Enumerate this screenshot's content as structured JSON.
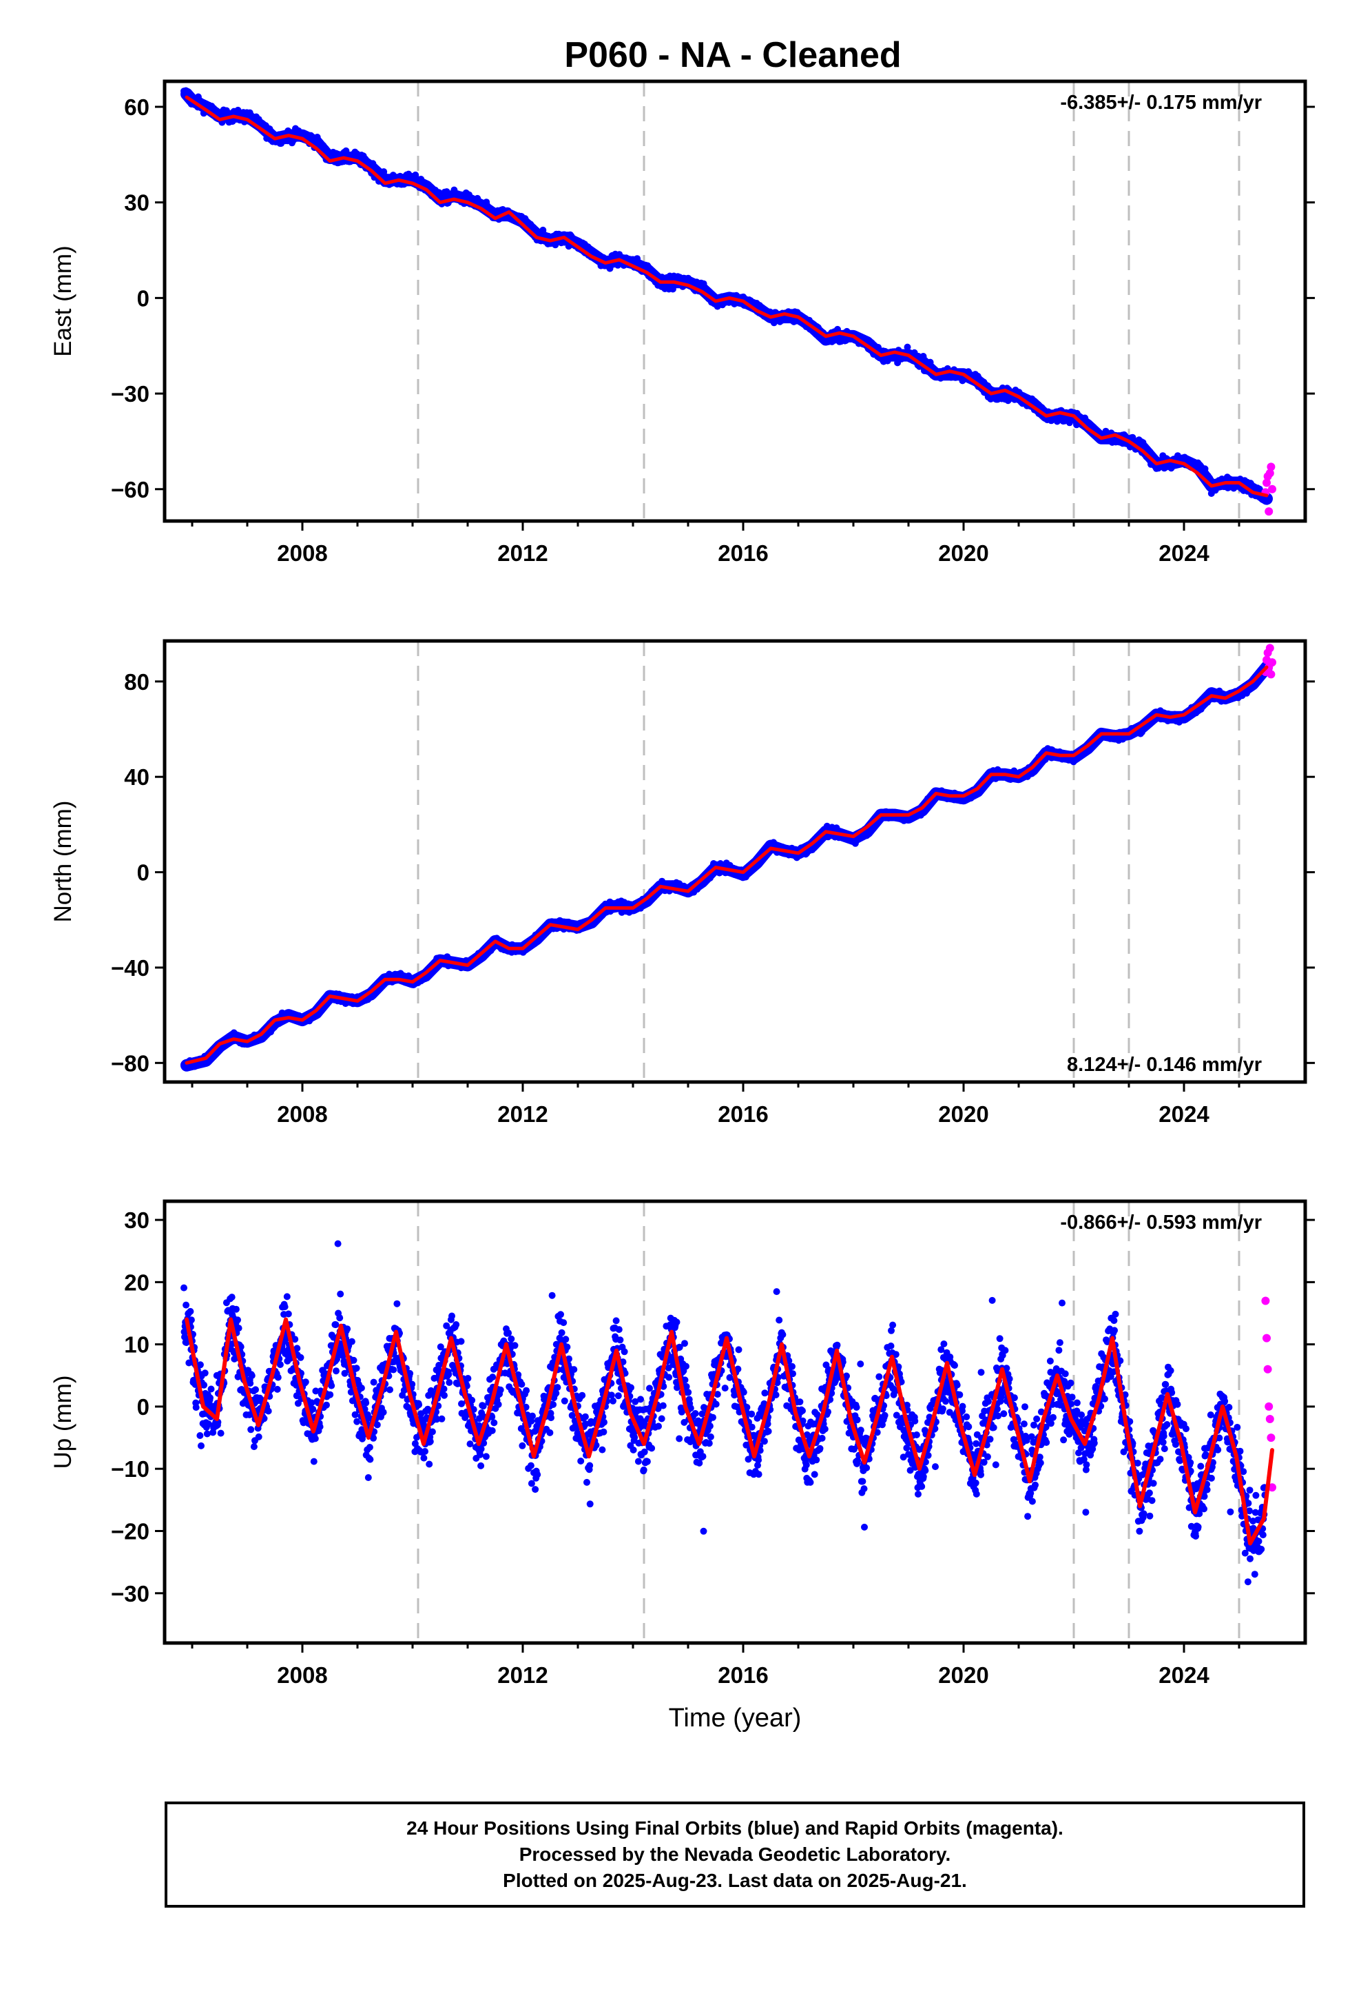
{
  "title": "P060  - NA - Cleaned",
  "xlabel": "Time (year)",
  "footer": {
    "line1": "24 Hour Positions Using Final Orbits (blue) and Rapid Orbits (magenta).",
    "line2": "Processed by the Nevada Geodetic Laboratory.",
    "line3": "Plotted on 2025-Aug-23. Last data on 2025-Aug-21."
  },
  "colors": {
    "final_orbits": "#0000ff",
    "rapid_orbits": "#ff00ff",
    "model_fit": "#ff0000",
    "event_lines": "#bfbfbf"
  },
  "chart_data": [
    {
      "type": "scatter",
      "ylabel": "East (mm)",
      "rate_label": "-6.385+/- 0.175 mm/yr",
      "rate_position": "top-right",
      "xlim": [
        2005.5,
        2026.2
      ],
      "ylim": [
        -70,
        68
      ],
      "xticks": [
        2008,
        2012,
        2016,
        2020,
        2024
      ],
      "yticks": [
        -60,
        -30,
        0,
        30,
        60
      ],
      "event_lines": [
        2010.1,
        2014.2,
        2022.0,
        2023.0,
        2025.0
      ],
      "series": [
        {
          "type": "line",
          "color": "#0000ff",
          "x": [
            2005.9,
            2006.0,
            2006.25,
            2006.5,
            2006.75,
            2007.0,
            2007.25,
            2007.5,
            2007.75,
            2008.0,
            2008.25,
            2008.5,
            2008.75,
            2009.0,
            2009.25,
            2009.5,
            2009.75,
            2010.0,
            2010.25,
            2010.5,
            2010.75,
            2011.0,
            2011.25,
            2011.5,
            2011.75,
            2012.0,
            2012.25,
            2012.5,
            2012.75,
            2013.0,
            2013.25,
            2013.5,
            2013.75,
            2014.0,
            2014.25,
            2014.5,
            2014.75,
            2015.0,
            2015.25,
            2015.5,
            2015.75,
            2016.0,
            2016.25,
            2016.5,
            2016.75,
            2017.0,
            2017.25,
            2017.5,
            2017.75,
            2018.0,
            2018.25,
            2018.5,
            2018.75,
            2019.0,
            2019.25,
            2019.5,
            2019.75,
            2020.0,
            2020.25,
            2020.5,
            2020.75,
            2021.0,
            2021.25,
            2021.5,
            2021.75,
            2022.0,
            2022.25,
            2022.5,
            2022.75,
            2023.0,
            2023.25,
            2023.5,
            2023.75,
            2024.0,
            2024.25,
            2024.5,
            2024.75,
            2025.0,
            2025.25,
            2025.5
          ],
          "y": [
            64,
            62,
            60,
            57,
            57,
            57,
            54,
            50,
            51,
            51,
            49,
            44,
            44,
            44,
            41,
            37,
            37,
            37,
            35,
            31,
            32,
            31,
            29,
            26,
            26,
            24,
            20,
            18,
            19,
            17,
            14,
            11,
            12,
            11,
            9,
            5,
            5,
            5,
            3,
            -1,
            0,
            -1,
            -3,
            -6,
            -6,
            -6,
            -9,
            -13,
            -12,
            -12,
            -14,
            -18,
            -18,
            -18,
            -20,
            -24,
            -24,
            -24,
            -26,
            -30,
            -30,
            -31,
            -33,
            -37,
            -37,
            -37,
            -40,
            -44,
            -44,
            -45,
            -47,
            -52,
            -52,
            -51,
            -53,
            -59,
            -58,
            -58,
            -60,
            -63
          ]
        },
        {
          "type": "line",
          "color": "#ff0000",
          "x": [
            2005.9,
            2006.25,
            2006.5,
            2006.75,
            2007.0,
            2007.25,
            2007.5,
            2007.75,
            2008.0,
            2008.25,
            2008.5,
            2008.75,
            2009.0,
            2009.25,
            2009.5,
            2009.75,
            2010.0,
            2010.25,
            2010.5,
            2010.75,
            2011.0,
            2011.25,
            2011.5,
            2011.75,
            2012.0,
            2012.25,
            2012.5,
            2012.75,
            2013.0,
            2013.25,
            2013.5,
            2013.75,
            2014.0,
            2014.25,
            2014.5,
            2014.75,
            2015.0,
            2015.25,
            2015.5,
            2015.75,
            2016.0,
            2016.25,
            2016.5,
            2016.75,
            2017.0,
            2017.25,
            2017.5,
            2017.75,
            2018.0,
            2018.25,
            2018.5,
            2018.75,
            2019.0,
            2019.25,
            2019.5,
            2019.75,
            2020.0,
            2020.25,
            2020.5,
            2020.75,
            2021.0,
            2021.25,
            2021.5,
            2021.75,
            2022.0,
            2022.25,
            2022.5,
            2022.75,
            2023.0,
            2023.25,
            2023.5,
            2023.75,
            2024.0,
            2024.25,
            2024.5,
            2024.75,
            2025.0,
            2025.25,
            2025.5
          ],
          "y": [
            63,
            59,
            56,
            57,
            56,
            53,
            50,
            51,
            50,
            47,
            43,
            44,
            43,
            40,
            36,
            37,
            36,
            34,
            30,
            31,
            30,
            28,
            25,
            27,
            23,
            19,
            18,
            19,
            16,
            13,
            11,
            12,
            10,
            8,
            5,
            5,
            4,
            2,
            -1,
            0,
            -1,
            -4,
            -6,
            -5,
            -6,
            -9,
            -12,
            -11,
            -12,
            -15,
            -18,
            -17,
            -18,
            -21,
            -24,
            -23,
            -24,
            -27,
            -30,
            -29,
            -31,
            -34,
            -37,
            -36,
            -37,
            -41,
            -44,
            -43,
            -45,
            -48,
            -52,
            -51,
            -52,
            -55,
            -59,
            -58,
            -58,
            -61,
            -62
          ]
        },
        {
          "type": "scatter",
          "color": "#ff00ff",
          "x": [
            2025.48,
            2025.5,
            2025.52,
            2025.54,
            2025.56,
            2025.58,
            2025.6
          ],
          "y": [
            -61,
            -58,
            -56,
            -67,
            -55,
            -53,
            -60
          ]
        }
      ]
    },
    {
      "type": "scatter",
      "ylabel": "North (mm)",
      "rate_label": "8.124+/- 0.146 mm/yr",
      "rate_position": "bottom-right",
      "xlim": [
        2005.5,
        2026.2
      ],
      "ylim": [
        -88,
        97
      ],
      "xticks": [
        2008,
        2012,
        2016,
        2020,
        2024
      ],
      "yticks": [
        -80,
        -40,
        0,
        40,
        80
      ],
      "event_lines": [
        2010.1,
        2014.2,
        2022.0,
        2023.0,
        2025.0
      ],
      "series": [
        {
          "type": "line",
          "color": "#0000ff",
          "x": [
            2005.9,
            2006.25,
            2006.5,
            2006.75,
            2007.0,
            2007.25,
            2007.5,
            2007.75,
            2008.0,
            2008.25,
            2008.5,
            2008.75,
            2009.0,
            2009.25,
            2009.5,
            2009.75,
            2010.0,
            2010.25,
            2010.5,
            2010.75,
            2011.0,
            2011.25,
            2011.5,
            2011.75,
            2012.0,
            2012.25,
            2012.5,
            2012.75,
            2013.0,
            2013.25,
            2013.5,
            2013.75,
            2014.0,
            2014.25,
            2014.5,
            2014.75,
            2015.0,
            2015.25,
            2015.5,
            2015.75,
            2016.0,
            2016.25,
            2016.5,
            2016.75,
            2017.0,
            2017.25,
            2017.5,
            2017.75,
            2018.0,
            2018.25,
            2018.5,
            2018.75,
            2019.0,
            2019.25,
            2019.5,
            2019.75,
            2020.0,
            2020.25,
            2020.5,
            2020.75,
            2021.0,
            2021.25,
            2021.5,
            2021.75,
            2022.0,
            2022.25,
            2022.5,
            2022.75,
            2023.0,
            2023.25,
            2023.5,
            2023.75,
            2024.0,
            2024.25,
            2024.5,
            2024.75,
            2025.0,
            2025.25,
            2025.5
          ],
          "y": [
            -81,
            -79,
            -73,
            -69,
            -71,
            -69,
            -63,
            -60,
            -62,
            -59,
            -52,
            -53,
            -54,
            -51,
            -45,
            -44,
            -46,
            -43,
            -37,
            -38,
            -39,
            -35,
            -29,
            -32,
            -32,
            -28,
            -22,
            -22,
            -23,
            -21,
            -15,
            -14,
            -15,
            -12,
            -6,
            -6,
            -8,
            -4,
            2,
            1,
            -1,
            4,
            11,
            9,
            8,
            11,
            17,
            16,
            14,
            17,
            24,
            24,
            23,
            26,
            33,
            32,
            31,
            34,
            41,
            41,
            40,
            43,
            50,
            49,
            48,
            52,
            58,
            57,
            58,
            61,
            66,
            65,
            65,
            69,
            75,
            73,
            75,
            79,
            86
          ]
        },
        {
          "type": "line",
          "color": "#ff0000",
          "x": [
            2005.9,
            2006.25,
            2006.5,
            2006.75,
            2007.0,
            2007.25,
            2007.5,
            2007.75,
            2008.0,
            2008.25,
            2008.5,
            2008.75,
            2009.0,
            2009.25,
            2009.5,
            2009.75,
            2010.0,
            2010.25,
            2010.5,
            2010.75,
            2011.0,
            2011.25,
            2011.5,
            2011.75,
            2012.0,
            2012.25,
            2012.5,
            2012.75,
            2013.0,
            2013.25,
            2013.5,
            2013.75,
            2014.0,
            2014.25,
            2014.5,
            2014.75,
            2015.0,
            2015.25,
            2015.5,
            2015.75,
            2016.0,
            2016.25,
            2016.5,
            2016.75,
            2017.0,
            2017.25,
            2017.5,
            2017.75,
            2018.0,
            2018.25,
            2018.5,
            2018.75,
            2019.0,
            2019.25,
            2019.5,
            2019.75,
            2020.0,
            2020.25,
            2020.5,
            2020.75,
            2021.0,
            2021.25,
            2021.5,
            2021.75,
            2022.0,
            2022.25,
            2022.5,
            2022.75,
            2023.0,
            2023.25,
            2023.5,
            2023.75,
            2024.0,
            2024.25,
            2024.5,
            2024.75,
            2025.0,
            2025.25,
            2025.5
          ],
          "y": [
            -80,
            -78,
            -72,
            -70,
            -71,
            -68,
            -62,
            -61,
            -62,
            -58,
            -52,
            -53,
            -54,
            -50,
            -45,
            -45,
            -46,
            -42,
            -37,
            -38,
            -39,
            -34,
            -29,
            -32,
            -32,
            -27,
            -22,
            -23,
            -24,
            -20,
            -15,
            -15,
            -15,
            -11,
            -6,
            -7,
            -8,
            -3,
            2,
            1,
            0,
            5,
            10,
            9,
            8,
            12,
            17,
            16,
            15,
            19,
            24,
            24,
            24,
            27,
            33,
            32,
            32,
            35,
            41,
            41,
            40,
            44,
            50,
            49,
            49,
            53,
            58,
            58,
            58,
            62,
            66,
            65,
            66,
            70,
            74,
            73,
            76,
            80,
            86
          ]
        },
        {
          "type": "scatter",
          "color": "#ff00ff",
          "x": [
            2025.48,
            2025.5,
            2025.52,
            2025.54,
            2025.56,
            2025.58,
            2025.6
          ],
          "y": [
            84,
            89,
            92,
            86,
            94,
            83,
            88
          ]
        }
      ]
    },
    {
      "type": "scatter",
      "ylabel": "Up (mm)",
      "xlabel": "Time (year)",
      "rate_label": "-0.866+/- 0.593 mm/yr",
      "rate_position": "top-right",
      "xlim": [
        2005.5,
        2026.2
      ],
      "ylim": [
        -38,
        33
      ],
      "xticks": [
        2008,
        2012,
        2016,
        2020,
        2024
      ],
      "yticks": [
        -30,
        -20,
        -10,
        0,
        10,
        20,
        30
      ],
      "event_lines": [
        2010.1,
        2014.2,
        2022.0,
        2023.0,
        2025.0
      ],
      "series": [
        {
          "type": "line",
          "color": "#ff0000",
          "x": [
            2005.9,
            2006.2,
            2006.45,
            2006.7,
            2006.95,
            2007.2,
            2007.45,
            2007.7,
            2007.95,
            2008.2,
            2008.45,
            2008.7,
            2008.95,
            2009.2,
            2009.45,
            2009.7,
            2009.95,
            2010.2,
            2010.45,
            2010.7,
            2010.95,
            2011.2,
            2011.45,
            2011.7,
            2011.95,
            2012.2,
            2012.45,
            2012.7,
            2012.95,
            2013.2,
            2013.45,
            2013.7,
            2013.95,
            2014.2,
            2014.45,
            2014.7,
            2014.95,
            2015.2,
            2015.45,
            2015.7,
            2015.95,
            2016.2,
            2016.45,
            2016.7,
            2016.95,
            2017.2,
            2017.45,
            2017.7,
            2017.95,
            2018.2,
            2018.45,
            2018.7,
            2018.95,
            2019.2,
            2019.45,
            2019.7,
            2019.95,
            2020.2,
            2020.45,
            2020.7,
            2020.95,
            2021.2,
            2021.45,
            2021.7,
            2021.95,
            2022.2,
            2022.45,
            2022.7,
            2022.95,
            2023.2,
            2023.45,
            2023.7,
            2023.95,
            2024.2,
            2024.45,
            2024.7,
            2024.95,
            2025.2,
            2025.45,
            2025.6
          ],
          "y": [
            14,
            0,
            -2,
            14,
            4,
            -3,
            5,
            14,
            4,
            -4,
            4,
            13,
            3,
            -5,
            3,
            12,
            2,
            -6,
            2,
            11,
            2,
            -6,
            1,
            10,
            1,
            -8,
            0,
            10,
            0,
            -8,
            0,
            9,
            -1,
            -6,
            2,
            12,
            0,
            -6,
            2,
            11,
            1,
            -8,
            0,
            10,
            -1,
            -8,
            -1,
            9,
            -2,
            -9,
            -1,
            8,
            -2,
            -10,
            -2,
            7,
            -3,
            -11,
            -3,
            6,
            -3,
            -12,
            -2,
            5,
            -2,
            -6,
            1,
            11,
            -3,
            -16,
            -7,
            2,
            -6,
            -17,
            -9,
            0,
            -8,
            -22,
            -18,
            -7
          ]
        },
        {
          "type": "scatter",
          "color": "#ff00ff",
          "x": [
            2025.48,
            2025.5,
            2025.52,
            2025.54,
            2025.56,
            2025.58,
            2025.6
          ],
          "y": [
            17,
            11,
            6,
            0,
            -2,
            -5,
            -13
          ]
        }
      ]
    }
  ]
}
